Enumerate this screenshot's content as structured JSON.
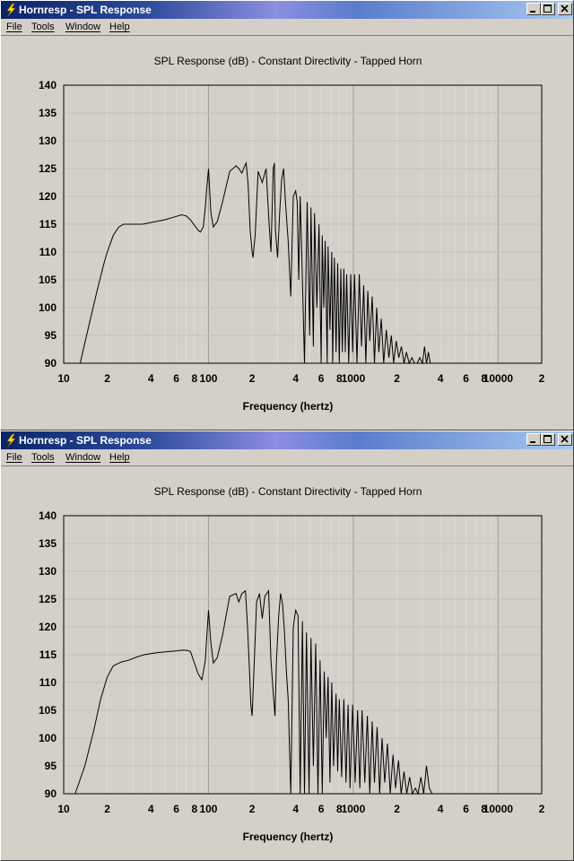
{
  "windows": [
    {
      "title": "Hornresp - SPL Response",
      "menu": {
        "file": "File",
        "tools": "Tools",
        "window": "Window",
        "help": "Help"
      },
      "chart_data": {
        "type": "line",
        "title": "SPL Response (dB) - Constant Directivity - Tapped Horn",
        "xlabel": "Frequency (hertz)",
        "ylabel": "",
        "xscale": "log",
        "xlim": [
          10,
          20000
        ],
        "ylim": [
          90,
          140
        ],
        "yticks": [
          90,
          95,
          100,
          105,
          110,
          115,
          120,
          125,
          130,
          135,
          140
        ],
        "xtick_labels": [
          {
            "x": 10,
            "label": "10"
          },
          {
            "x": 20,
            "label": "2"
          },
          {
            "x": 40,
            "label": "4"
          },
          {
            "x": 60,
            "label": "6"
          },
          {
            "x": 80,
            "label": "8"
          },
          {
            "x": 100,
            "label": "100"
          },
          {
            "x": 200,
            "label": "2"
          },
          {
            "x": 400,
            "label": "4"
          },
          {
            "x": 600,
            "label": "6"
          },
          {
            "x": 800,
            "label": "8"
          },
          {
            "x": 1000,
            "label": "1000"
          },
          {
            "x": 2000,
            "label": "2"
          },
          {
            "x": 4000,
            "label": "4"
          },
          {
            "x": 6000,
            "label": "6"
          },
          {
            "x": 8000,
            "label": "8"
          },
          {
            "x": 10000,
            "label": "10000"
          },
          {
            "x": 20000,
            "label": "2"
          }
        ],
        "grid": true,
        "series": [
          {
            "x": [
              13,
              15,
              17,
              19,
              20,
              22,
              24,
              26,
              30,
              35,
              40,
              50,
              60,
              65,
              70,
              75,
              80,
              85,
              88,
              92,
              95,
              97,
              100,
              104,
              108,
              115,
              125,
              140,
              155,
              162,
              170,
              178,
              182,
              188,
              194,
              200,
              203,
              210,
              220,
              235,
              250,
              260,
              270,
              280,
              285,
              290,
              300,
              310,
              320,
              330,
              340,
              355,
              370,
              385,
              400,
              410,
              420,
              430,
              440,
              460,
              480,
              500,
              510,
              530,
              540,
              560,
              580,
              600,
              610,
              625,
              640,
              660,
              670,
              690,
              710,
              720,
              740,
              760,
              780,
              800,
              820,
              840,
              860,
              880,
              900,
              930,
              960,
              990,
              1020,
              1060,
              1100,
              1140,
              1180,
              1220,
              1260,
              1300,
              1350,
              1400,
              1450,
              1500,
              1560,
              1620,
              1690,
              1760,
              1830,
              1900,
              1980,
              2060,
              2150,
              2240,
              2330,
              2430,
              2540,
              2650,
              2760,
              2880,
              3000,
              3100,
              3200,
              3300,
              3400,
              3500
            ],
            "y": [
              90,
              97,
              103,
              108,
              110,
              113,
              114.5,
              115,
              115,
              115,
              115.3,
              115.8,
              116.4,
              116.7,
              116.5,
              115.8,
              114.8,
              113.9,
              113.6,
              114.5,
              118,
              121,
              125,
              117,
              114.5,
              115.5,
              119,
              124.5,
              125.5,
              125,
              124.2,
              125.5,
              126,
              122,
              114,
              110,
              109,
              113,
              124.5,
              122.5,
              125,
              116.5,
              110,
              125,
              126,
              114,
              109,
              117,
              123,
              125,
              119,
              112,
              102,
              120,
              121,
              119,
              105,
              120,
              110,
              90,
              119,
              95,
              118,
              93,
              117,
              100,
              115,
              90,
              113,
              100,
              112,
              90,
              111,
              96,
              110,
              90,
              109,
              92,
              108,
              90,
              107,
              92,
              107,
              92,
              106,
              90,
              106,
              92,
              106,
              90,
              106,
              93,
              104,
              90,
              103,
              94,
              102,
              90,
              100,
              92,
              98,
              90,
              96,
              91,
              95,
              90,
              94,
              91,
              93,
              90,
              92,
              90,
              91,
              90,
              90,
              91,
              90,
              93,
              90,
              92,
              90,
              90
            ]
          }
        ]
      }
    },
    {
      "title": "Hornresp - SPL Response",
      "menu": {
        "file": "File",
        "tools": "Tools",
        "window": "Window",
        "help": "Help"
      },
      "chart_data": {
        "type": "line",
        "title": "SPL Response (dB) - Constant Directivity - Tapped Horn",
        "xlabel": "Frequency (hertz)",
        "ylabel": "",
        "xscale": "log",
        "xlim": [
          10,
          20000
        ],
        "ylim": [
          90,
          140
        ],
        "yticks": [
          90,
          95,
          100,
          105,
          110,
          115,
          120,
          125,
          130,
          135,
          140
        ],
        "xtick_labels": [
          {
            "x": 10,
            "label": "10"
          },
          {
            "x": 20,
            "label": "2"
          },
          {
            "x": 40,
            "label": "4"
          },
          {
            "x": 60,
            "label": "6"
          },
          {
            "x": 80,
            "label": "8"
          },
          {
            "x": 100,
            "label": "100"
          },
          {
            "x": 200,
            "label": "2"
          },
          {
            "x": 400,
            "label": "4"
          },
          {
            "x": 600,
            "label": "6"
          },
          {
            "x": 800,
            "label": "8"
          },
          {
            "x": 1000,
            "label": "1000"
          },
          {
            "x": 2000,
            "label": "2"
          },
          {
            "x": 4000,
            "label": "4"
          },
          {
            "x": 6000,
            "label": "6"
          },
          {
            "x": 8000,
            "label": "8"
          },
          {
            "x": 10000,
            "label": "10000"
          },
          {
            "x": 20000,
            "label": "2"
          }
        ],
        "grid": true,
        "series": [
          {
            "x": [
              12,
              14,
              16,
              18,
              20,
              22,
              25,
              28,
              32,
              36,
              40,
              45,
              50,
              55,
              60,
              65,
              70,
              75,
              80,
              85,
              90,
              95,
              100,
              104,
              108,
              115,
              125,
              140,
              155,
              162,
              170,
              180,
              186,
              192,
              196,
              200,
              206,
              215,
              225,
              235,
              245,
              260,
              270,
              280,
              288,
              295,
              305,
              315,
              325,
              335,
              345,
              355,
              370,
              385,
              400,
              415,
              430,
              445,
              460,
              475,
              495,
              510,
              530,
              550,
              570,
              590,
              610,
              630,
              650,
              670,
              690,
              710,
              730,
              760,
              780,
              800,
              830,
              860,
              890,
              920,
              950,
              990,
              1030,
              1070,
              1110,
              1150,
              1200,
              1250,
              1300,
              1350,
              1400,
              1460,
              1520,
              1580,
              1650,
              1720,
              1800,
              1880,
              1960,
              2050,
              2140,
              2240,
              2340,
              2450,
              2560,
              2680,
              2800,
              2930,
              3060,
              3200,
              3350,
              3500
            ],
            "y": [
              90,
              95,
              101,
              107,
              111,
              113,
              113.7,
              114,
              114.6,
              115,
              115.2,
              115.4,
              115.5,
              115.6,
              115.7,
              115.8,
              115.8,
              115.6,
              113.5,
              111.5,
              110.5,
              114,
              123,
              117,
              113.5,
              114.5,
              118.5,
              125.5,
              126,
              124.5,
              126,
              126.5,
              120,
              112,
              106,
              104,
              112,
              124.5,
              126,
              121.5,
              125.5,
              126.5,
              114,
              108,
              104,
              114,
              122,
              126,
              124,
              119,
              112,
              107,
              90,
              120,
              123,
              122,
              90,
              121,
              90,
              119,
              90,
              118,
              95,
              117,
              90,
              114,
              90,
              112,
              100,
              111,
              92,
              110,
              95,
              108,
              94,
              107,
              93,
              107,
              92,
              106,
              91,
              106,
              92,
              105,
              91,
              105,
              92,
              104,
              90,
              103,
              92,
              102,
              90,
              100,
              92,
              99,
              90,
              97,
              91,
              96,
              90,
              94,
              90,
              93,
              90,
              91,
              90,
              93,
              90,
              95,
              91,
              90
            ]
          }
        ]
      }
    }
  ]
}
